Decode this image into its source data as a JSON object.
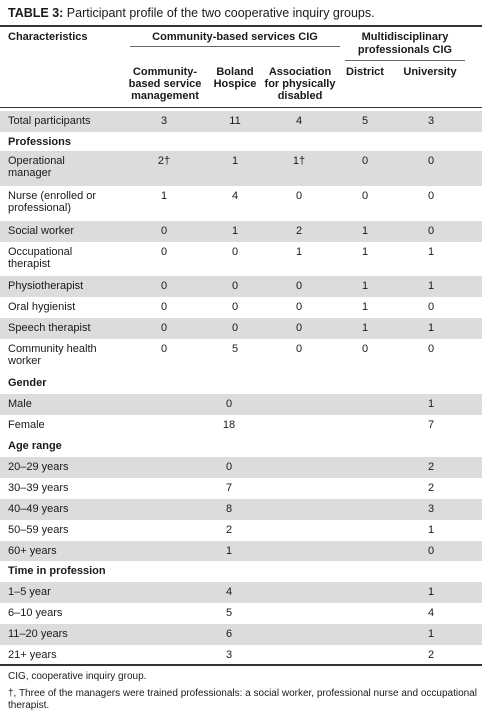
{
  "title": {
    "label": "TABLE 3:",
    "text": " Participant profile of the two cooperative inquiry groups."
  },
  "header": {
    "characteristics": "Characteristics",
    "group1": "Community-based services CIG",
    "group2_line1": "Multidisciplinary",
    "group2_line2": "professionals CIG",
    "col1": [
      "Community-",
      "based service",
      "management"
    ],
    "col2": [
      "Boland",
      "Hospice"
    ],
    "col3": [
      "Association",
      "for physically",
      "disabled"
    ],
    "col4": "District",
    "col5": "University"
  },
  "rows": [
    {
      "label": [
        "Total participants"
      ],
      "values": [
        "3",
        "11",
        "4",
        "5",
        "3"
      ]
    },
    {
      "label": [
        "Professions"
      ],
      "section": true,
      "values": []
    },
    {
      "label": [
        "Operational",
        "manager"
      ],
      "values": [
        "2†",
        "1",
        "1†",
        "0",
        "0"
      ]
    },
    {
      "label": [
        "Nurse (enrolled or",
        "professional)"
      ],
      "values": [
        "1",
        "4",
        "0",
        "0",
        "0"
      ]
    },
    {
      "label": [
        "Social worker"
      ],
      "values": [
        "0",
        "1",
        "2",
        "1",
        "0"
      ]
    },
    {
      "label": [
        "Occupational",
        "therapist"
      ],
      "values": [
        "0",
        "0",
        "1",
        "1",
        "1"
      ]
    },
    {
      "label": [
        "Physiotherapist"
      ],
      "values": [
        "0",
        "0",
        "0",
        "1",
        "1"
      ]
    },
    {
      "label": [
        "Oral hygienist"
      ],
      "values": [
        "0",
        "0",
        "0",
        "1",
        "0"
      ]
    },
    {
      "label": [
        "Speech therapist"
      ],
      "values": [
        "0",
        "0",
        "0",
        "1",
        "1"
      ]
    },
    {
      "label": [
        "Community health",
        "worker"
      ],
      "values": [
        "0",
        "5",
        "0",
        "0",
        "0"
      ]
    },
    {
      "label": [
        "Gender"
      ],
      "section": true,
      "values": []
    },
    {
      "label": [
        "Male"
      ],
      "values": [
        "0",
        "1"
      ]
    },
    {
      "label": [
        "Female"
      ],
      "values": [
        "18",
        "7"
      ]
    },
    {
      "label": [
        "Age range"
      ],
      "section": true,
      "values": []
    },
    {
      "label": [
        "20–29 years"
      ],
      "values": [
        "0",
        "2"
      ]
    },
    {
      "label": [
        "30–39 years"
      ],
      "values": [
        "7",
        "2"
      ]
    },
    {
      "label": [
        "40–49 years"
      ],
      "values": [
        "8",
        "3"
      ]
    },
    {
      "label": [
        "50–59 years"
      ],
      "values": [
        "2",
        "1"
      ]
    },
    {
      "label": [
        "60+ years"
      ],
      "values": [
        "1",
        "0"
      ]
    },
    {
      "label": [
        "Time in profession"
      ],
      "section": true,
      "values": []
    },
    {
      "label": [
        "1–5 year"
      ],
      "values": [
        "4",
        "1"
      ]
    },
    {
      "label": [
        "6–10 years"
      ],
      "values": [
        "5",
        "4"
      ]
    },
    {
      "label": [
        "11–20 years"
      ],
      "values": [
        "6",
        "1"
      ]
    },
    {
      "label": [
        "21+ years"
      ],
      "values": [
        "3",
        "2"
      ]
    }
  ],
  "footnotes": [
    "CIG, cooperative inquiry group.",
    "†, Three of the managers were trained professionals: a social worker, professional nurse and occupational therapist."
  ]
}
